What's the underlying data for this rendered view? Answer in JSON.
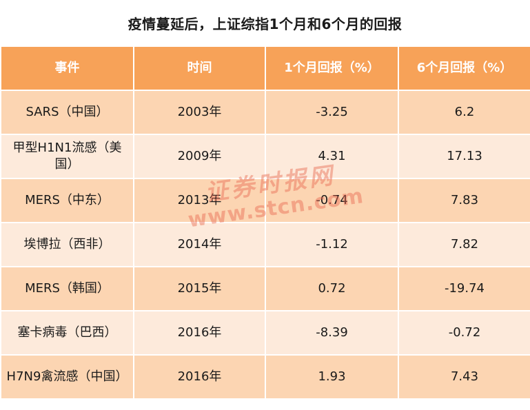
{
  "title": "疫情蔓延后，上证综指1个月和6个月的回报",
  "table": {
    "headers": [
      "事件",
      "时间",
      "1个月回报（%）",
      "6个月回报（%）"
    ],
    "rows": [
      [
        "SARS（中国）",
        "2003年",
        "-3.25",
        "6.2"
      ],
      [
        "甲型H1N1流感（美国）",
        "2009年",
        "4.31",
        "17.13"
      ],
      [
        "MERS（中东）",
        "2013年",
        "-0.74",
        "7.83"
      ],
      [
        "埃博拉（西非）",
        "2014年",
        "-1.12",
        "7.82"
      ],
      [
        "MERS（韩国）",
        "2015年",
        "0.72",
        "-19.74"
      ],
      [
        "塞卡病毒（巴西）",
        "2016年",
        "-8.39",
        "-0.72"
      ],
      [
        "H7N9禽流感（中国）",
        "2016年",
        "1.93",
        "7.43"
      ]
    ]
  },
  "watermark": {
    "line1": "证券时报网",
    "line2": "www.stcn.com"
  },
  "colors": {
    "header_bg": "#f7a258",
    "row_odd_bg": "#fcd5b2",
    "row_even_bg": "#fdeadb",
    "watermark": "#e96a52"
  }
}
